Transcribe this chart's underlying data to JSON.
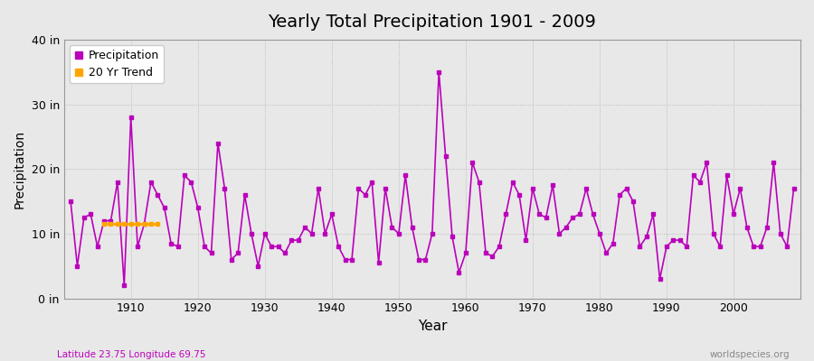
{
  "title": "Yearly Total Precipitation 1901 - 2009",
  "xlabel": "Year",
  "ylabel": "Precipitation",
  "background_color": "#e8e8e8",
  "plot_bg_color": "#e8e8e8",
  "line_color": "#bb00bb",
  "trend_color": "#ffa500",
  "xlim": [
    1900,
    2010
  ],
  "ylim": [
    0,
    40
  ],
  "yticks": [
    0,
    10,
    20,
    30,
    40
  ],
  "ytick_labels": [
    "0 in",
    "10 in",
    "20 in",
    "30 in",
    "40 in"
  ],
  "xticks": [
    1910,
    1920,
    1930,
    1940,
    1950,
    1960,
    1970,
    1980,
    1990,
    2000
  ],
  "footer_left": "Latitude 23.75 Longitude 69.75",
  "footer_right": "worldspecies.org",
  "years": [
    1901,
    1902,
    1903,
    1904,
    1905,
    1906,
    1907,
    1908,
    1909,
    1910,
    1911,
    1912,
    1913,
    1914,
    1915,
    1916,
    1917,
    1918,
    1919,
    1920,
    1921,
    1922,
    1923,
    1924,
    1925,
    1926,
    1927,
    1928,
    1929,
    1930,
    1931,
    1932,
    1933,
    1934,
    1935,
    1936,
    1937,
    1938,
    1939,
    1940,
    1941,
    1942,
    1943,
    1944,
    1945,
    1946,
    1947,
    1948,
    1949,
    1950,
    1951,
    1952,
    1953,
    1954,
    1955,
    1956,
    1957,
    1958,
    1959,
    1960,
    1961,
    1962,
    1963,
    1964,
    1965,
    1966,
    1967,
    1968,
    1969,
    1970,
    1971,
    1972,
    1973,
    1974,
    1975,
    1976,
    1977,
    1978,
    1979,
    1980,
    1981,
    1982,
    1983,
    1984,
    1985,
    1986,
    1987,
    1988,
    1989,
    1990,
    1991,
    1992,
    1993,
    1994,
    1995,
    1996,
    1997,
    1998,
    1999,
    2000,
    2001,
    2002,
    2003,
    2004,
    2005,
    2006,
    2007,
    2008,
    2009
  ],
  "precip": [
    15.0,
    5.0,
    12.5,
    13.0,
    8.0,
    12.0,
    12.0,
    18.0,
    2.0,
    28.0,
    8.0,
    11.5,
    18.0,
    16.0,
    14.0,
    8.5,
    8.0,
    19.0,
    18.0,
    14.0,
    8.0,
    7.0,
    24.0,
    17.0,
    6.0,
    7.0,
    16.0,
    10.0,
    5.0,
    10.0,
    8.0,
    8.0,
    7.0,
    9.0,
    9.0,
    11.0,
    10.0,
    17.0,
    10.0,
    13.0,
    8.0,
    6.0,
    6.0,
    17.0,
    16.0,
    18.0,
    5.5,
    17.0,
    11.0,
    10.0,
    19.0,
    11.0,
    6.0,
    6.0,
    10.0,
    35.0,
    22.0,
    9.5,
    4.0,
    7.0,
    21.0,
    18.0,
    7.0,
    6.5,
    8.0,
    13.0,
    18.0,
    16.0,
    9.0,
    17.0,
    13.0,
    12.5,
    17.5,
    10.0,
    11.0,
    12.5,
    13.0,
    17.0,
    13.0,
    10.0,
    7.0,
    8.5,
    16.0,
    17.0,
    15.0,
    8.0,
    9.5,
    13.0,
    3.0,
    8.0,
    9.0,
    9.0,
    8.0,
    19.0,
    18.0,
    21.0,
    10.0,
    8.0,
    19.0,
    13.0,
    17.0,
    11.0,
    8.0,
    8.0,
    11.0,
    21.0,
    10.0,
    8.0,
    17.0
  ],
  "trend_years": [
    1906,
    1907,
    1908,
    1909,
    1910,
    1911,
    1912,
    1913,
    1914
  ],
  "trend_values": [
    11.5,
    11.5,
    11.5,
    11.5,
    11.5,
    11.5,
    11.5,
    11.5,
    11.5
  ]
}
